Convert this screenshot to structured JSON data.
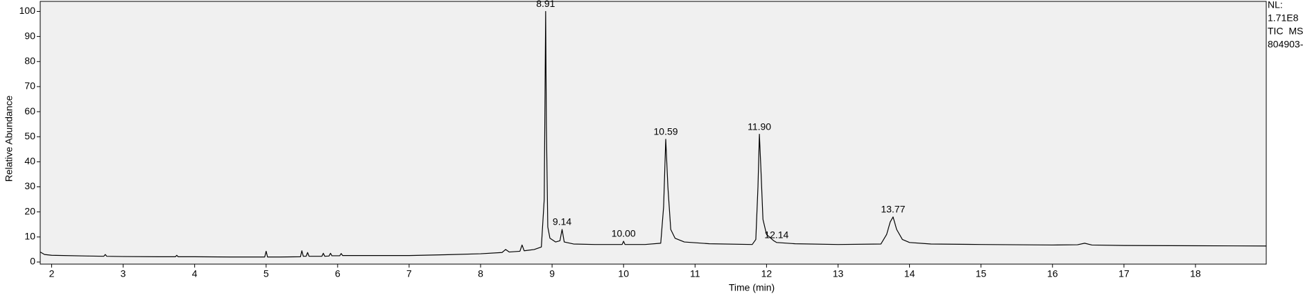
{
  "chart_data": {
    "type": "line",
    "x_label": "Time (min)",
    "y_label": "Relative Abundance",
    "side_text": [
      "NL:",
      "1.71E8",
      "TIC  MS",
      "804903-"
    ],
    "color": "#000000",
    "background": "#f0f0f0",
    "xlim": [
      1.84,
      18.99
    ],
    "ylim": [
      0,
      104
    ],
    "xticks": [
      2,
      3,
      4,
      5,
      6,
      7,
      8,
      9,
      10,
      11,
      12,
      13,
      14,
      15,
      16,
      17,
      18
    ],
    "yticks": [
      0,
      10,
      20,
      30,
      40,
      50,
      60,
      70,
      80,
      90,
      100
    ],
    "x": [
      1.84,
      1.9,
      2.0,
      2.5,
      2.73,
      2.75,
      2.77,
      3.0,
      3.5,
      3.73,
      3.75,
      3.77,
      4.0,
      4.5,
      4.98,
      5.0,
      5.02,
      5.2,
      5.48,
      5.5,
      5.52,
      5.56,
      5.58,
      5.6,
      5.78,
      5.8,
      5.82,
      5.88,
      5.9,
      5.92,
      6.03,
      6.05,
      6.07,
      6.5,
      7.0,
      7.5,
      8.0,
      8.3,
      8.35,
      8.4,
      8.55,
      8.58,
      8.61,
      8.75,
      8.85,
      8.89,
      8.91,
      8.92,
      8.94,
      8.97,
      9.05,
      9.11,
      9.14,
      9.17,
      9.3,
      9.6,
      9.98,
      10.0,
      10.02,
      10.3,
      10.52,
      10.56,
      10.59,
      10.62,
      10.66,
      10.72,
      10.85,
      11.2,
      11.8,
      11.85,
      11.88,
      11.9,
      11.92,
      11.95,
      12.0,
      12.1,
      12.14,
      12.4,
      13.0,
      13.6,
      13.68,
      13.73,
      13.77,
      13.82,
      13.9,
      14.0,
      14.3,
      15.0,
      16.0,
      16.35,
      16.45,
      16.55,
      17.0,
      18.0,
      18.99
    ],
    "values": [
      4,
      3,
      2.7,
      2.4,
      2.3,
      3,
      2.3,
      2.2,
      2.1,
      2.1,
      2.7,
      2.1,
      2.1,
      2,
      2,
      4.3,
      2,
      2,
      2.1,
      4.5,
      2.3,
      2.3,
      3.8,
      2.3,
      2.3,
      3.5,
      2.3,
      2.4,
      3.5,
      2.5,
      2.5,
      3.4,
      2.6,
      2.6,
      2.6,
      2.9,
      3.3,
      3.8,
      5,
      4,
      4.3,
      6.8,
      4.5,
      5,
      6,
      25,
      100,
      55,
      14,
      9.5,
      8,
      8.5,
      13,
      8,
      7.2,
      7,
      7,
      8.3,
      7,
      7,
      7.5,
      22,
      49,
      30,
      13,
      9.5,
      8,
      7.3,
      7,
      9,
      30,
      51,
      38,
      17,
      11,
      8.5,
      7.8,
      7.3,
      7,
      7.2,
      11,
      16,
      18,
      13,
      9,
      7.8,
      7.2,
      7,
      6.8,
      6.9,
      7.5,
      6.8,
      6.6,
      6.5,
      6.4
    ],
    "peaks": [
      {
        "label": "8.91",
        "x": 8.91,
        "y": 100
      },
      {
        "label": "9.14",
        "x": 9.14,
        "y": 13
      },
      {
        "label": "10.00",
        "x": 10.0,
        "y": 8.3
      },
      {
        "label": "10.59",
        "x": 10.59,
        "y": 49
      },
      {
        "label": "11.90",
        "x": 11.9,
        "y": 51
      },
      {
        "label": "12.14",
        "x": 12.14,
        "y": 7.8
      },
      {
        "label": "13.77",
        "x": 13.77,
        "y": 18
      }
    ]
  }
}
